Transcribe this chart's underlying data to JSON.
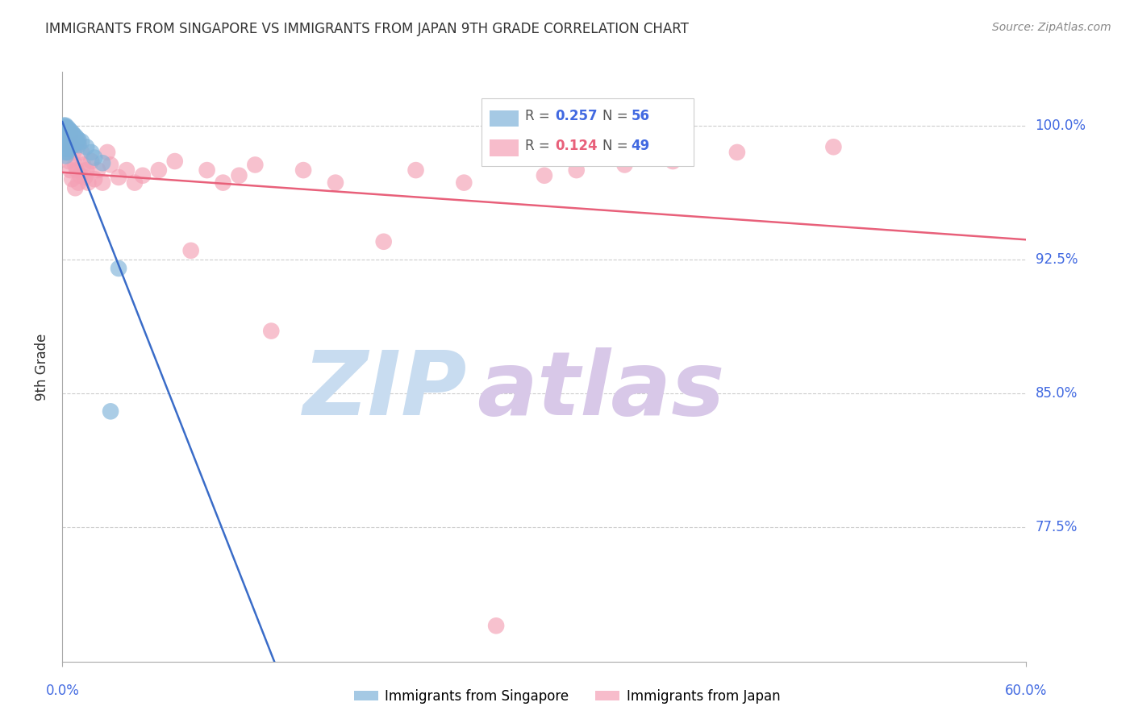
{
  "title": "IMMIGRANTS FROM SINGAPORE VS IMMIGRANTS FROM JAPAN 9TH GRADE CORRELATION CHART",
  "source": "Source: ZipAtlas.com",
  "xlabel_ticks": [
    "0.0%",
    "60.0%"
  ],
  "ylabel_label": "9th Grade",
  "ylabel_ticks": [
    77.5,
    85.0,
    92.5,
    100.0
  ],
  "ylabel_tick_labels": [
    "77.5%",
    "85.0%",
    "92.5%",
    "100.0%"
  ],
  "xmin": 0.0,
  "xmax": 0.6,
  "ymin": 0.7,
  "ymax": 1.03,
  "legend_r1": "0.257",
  "legend_n1": "56",
  "legend_r2": "0.124",
  "legend_n2": "49",
  "color_singapore": "#7FB3D9",
  "color_japan": "#F4A0B5",
  "trendline_singapore": "#3A6CC8",
  "trendline_japan": "#E8607A",
  "watermark_zip": "ZIP",
  "watermark_atlas": "atlas",
  "watermark_color_zip": "#C8DCF0",
  "watermark_color_atlas": "#D8C8E8",
  "singapore_x": [
    0.001,
    0.001,
    0.001,
    0.001,
    0.001,
    0.001,
    0.001,
    0.001,
    0.001,
    0.001,
    0.002,
    0.002,
    0.002,
    0.002,
    0.002,
    0.002,
    0.002,
    0.002,
    0.002,
    0.002,
    0.003,
    0.003,
    0.003,
    0.003,
    0.003,
    0.003,
    0.003,
    0.003,
    0.004,
    0.004,
    0.004,
    0.004,
    0.004,
    0.005,
    0.005,
    0.005,
    0.005,
    0.006,
    0.006,
    0.006,
    0.007,
    0.007,
    0.007,
    0.008,
    0.008,
    0.009,
    0.009,
    0.01,
    0.01,
    0.012,
    0.015,
    0.018,
    0.02,
    0.025,
    0.03,
    0.035
  ],
  "singapore_y": [
    1.0,
    0.999,
    0.998,
    0.997,
    0.996,
    0.995,
    0.994,
    0.993,
    0.992,
    0.99,
    1.0,
    0.999,
    0.997,
    0.995,
    0.993,
    0.991,
    0.989,
    0.987,
    0.985,
    0.983,
    0.999,
    0.997,
    0.995,
    0.993,
    0.991,
    0.989,
    0.987,
    0.985,
    0.998,
    0.996,
    0.993,
    0.99,
    0.987,
    0.997,
    0.994,
    0.991,
    0.988,
    0.996,
    0.993,
    0.99,
    0.995,
    0.992,
    0.989,
    0.994,
    0.991,
    0.993,
    0.99,
    0.992,
    0.989,
    0.991,
    0.988,
    0.985,
    0.982,
    0.979,
    0.84,
    0.92
  ],
  "japan_x": [
    0.002,
    0.003,
    0.004,
    0.005,
    0.005,
    0.006,
    0.006,
    0.007,
    0.008,
    0.008,
    0.009,
    0.01,
    0.01,
    0.011,
    0.012,
    0.013,
    0.014,
    0.015,
    0.016,
    0.018,
    0.02,
    0.022,
    0.025,
    0.028,
    0.03,
    0.035,
    0.04,
    0.045,
    0.05,
    0.06,
    0.07,
    0.08,
    0.09,
    0.1,
    0.11,
    0.12,
    0.13,
    0.15,
    0.17,
    0.2,
    0.22,
    0.25,
    0.27,
    0.3,
    0.32,
    0.35,
    0.38,
    0.42,
    0.48
  ],
  "japan_y": [
    0.99,
    0.985,
    0.98,
    0.975,
    0.995,
    0.988,
    0.97,
    0.985,
    0.978,
    0.965,
    0.975,
    0.968,
    0.99,
    0.972,
    0.985,
    0.978,
    0.971,
    0.975,
    0.968,
    0.98,
    0.97,
    0.975,
    0.968,
    0.985,
    0.978,
    0.971,
    0.975,
    0.968,
    0.972,
    0.975,
    0.98,
    0.93,
    0.975,
    0.968,
    0.972,
    0.978,
    0.885,
    0.975,
    0.968,
    0.935,
    0.975,
    0.968,
    0.72,
    0.972,
    0.975,
    0.978,
    0.98,
    0.985,
    0.988
  ],
  "grid_color": "#CCCCCC",
  "axis_color": "#AAAAAA",
  "tick_label_color": "#4169E1",
  "ylabel_color": "#333333",
  "title_color": "#333333"
}
